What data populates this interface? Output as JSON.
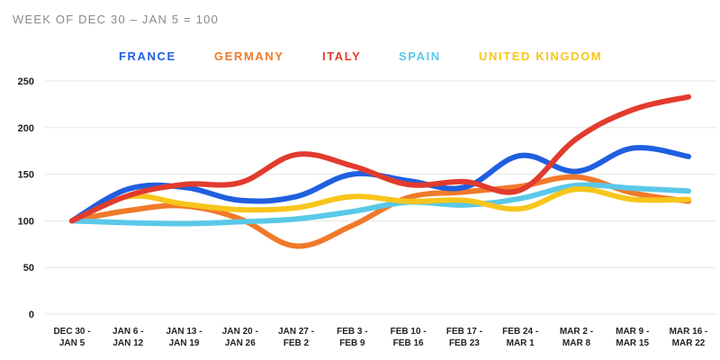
{
  "chart_data": {
    "type": "line",
    "title": "",
    "subtitle": "WEEK OF DEC 30 – JAN 5 = 100",
    "xlabel": "",
    "ylabel": "",
    "ylim": [
      0,
      250
    ],
    "yticks": [
      0,
      50,
      100,
      150,
      200,
      250
    ],
    "grid": true,
    "legend_position": "top",
    "categories": [
      [
        "DEC 30 -",
        "JAN 5"
      ],
      [
        "JAN 6 -",
        "JAN 12"
      ],
      [
        "JAN 13 -",
        "JAN 19"
      ],
      [
        "JAN 20 -",
        "JAN 26"
      ],
      [
        "JAN 27 -",
        "FEB 2"
      ],
      [
        "FEB 3 -",
        "FEB 9"
      ],
      [
        "FEB 10 -",
        "FEB 16"
      ],
      [
        "FEB 17 -",
        "FEB 23"
      ],
      [
        "FEB 24 -",
        "MAR 1"
      ],
      [
        "MAR 2 -",
        "MAR 8"
      ],
      [
        "MAR 9 -",
        "MAR 15"
      ],
      [
        "MAR 16 -",
        "MAR 22"
      ]
    ],
    "series": [
      {
        "name": "FRANCE",
        "color": "#1f5fe0",
        "values": [
          100,
          134,
          136,
          122,
          126,
          150,
          143,
          136,
          170,
          153,
          178,
          169
        ]
      },
      {
        "name": "GERMANY",
        "color": "#f07a2a",
        "values": [
          100,
          111,
          116,
          102,
          73,
          95,
          125,
          131,
          137,
          147,
          130,
          121
        ]
      },
      {
        "name": "ITALY",
        "color": "#e23b2e",
        "values": [
          100,
          127,
          139,
          141,
          171,
          159,
          139,
          142,
          133,
          188,
          219,
          233
        ]
      },
      {
        "name": "SPAIN",
        "color": "#5ac8e8",
        "values": [
          100,
          98,
          97,
          99,
          102,
          110,
          120,
          117,
          124,
          138,
          135,
          132
        ]
      },
      {
        "name": "UNITED KINGDOM",
        "color": "#f8c51b",
        "values": [
          100,
          126,
          118,
          112,
          114,
          126,
          121,
          122,
          113,
          134,
          123,
          123
        ]
      }
    ]
  }
}
